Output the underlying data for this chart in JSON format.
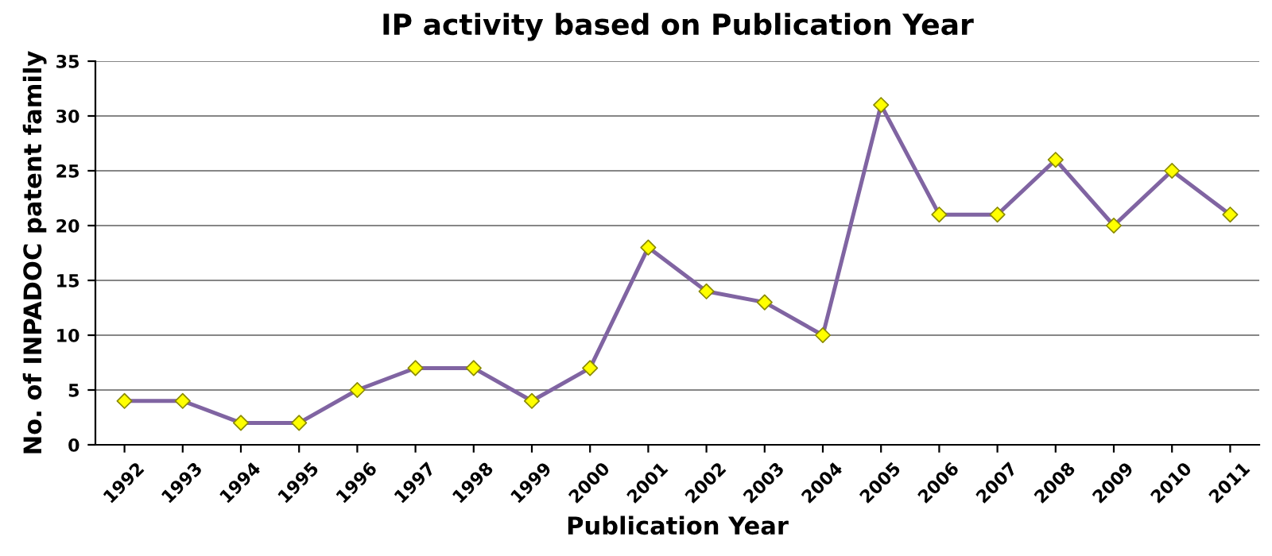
{
  "chart_data": {
    "type": "line",
    "title": "IP activity based on Publication Year",
    "xlabel": "Publication Year",
    "ylabel": "No. of INPADOC patent family",
    "categories": [
      "1992",
      "1993",
      "1994",
      "1995",
      "1996",
      "1997",
      "1998",
      "1999",
      "2000",
      "2001",
      "2002",
      "2003",
      "2004",
      "2005",
      "2006",
      "2007",
      "2008",
      "2009",
      "2010",
      "2011"
    ],
    "series": [
      {
        "color": "#8064a2",
        "values": [
          4,
          4,
          2,
          2,
          5,
          7,
          7,
          4,
          7,
          18,
          14,
          13,
          10,
          31,
          21,
          21,
          26,
          20,
          25,
          21
        ],
        "colors": [
          "#ffff00",
          "#ffff00",
          "#ffff00",
          "#ffff00",
          "#ffff00",
          "#ffff00",
          "#ffff00",
          "#ffff00",
          "#ffff00",
          "#ffff00",
          "#ffff00",
          "#ffff00",
          "#ffff00",
          "#ffff00",
          "#ffff00",
          "#ffff00",
          "#ffff00",
          "#ffff00",
          "#ffff00",
          "#ffff00"
        ]
      }
    ],
    "ylim": [
      0,
      35
    ],
    "yticks": [
      0,
      5,
      10,
      15,
      20,
      25,
      30,
      35
    ],
    "grid": "y",
    "marker": "diamond",
    "line_style": "solid",
    "legend": false
  }
}
